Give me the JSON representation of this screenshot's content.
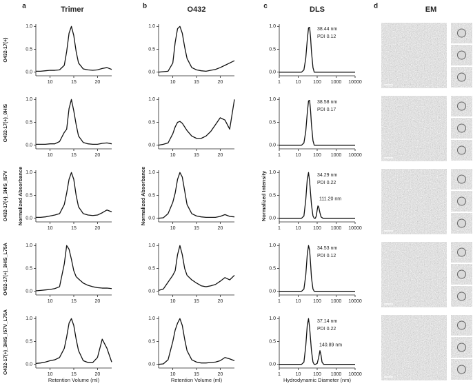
{
  "figure": {
    "panels": [
      {
        "letter": "a",
        "title": "Trimer"
      },
      {
        "letter": "b",
        "title": "O432"
      },
      {
        "letter": "c",
        "title": "DLS"
      },
      {
        "letter": "d",
        "title": "EM"
      }
    ],
    "row_labels": [
      "O432-17(+)",
      "O432-17(+)_0HIS",
      "O432-17(+)_3HIS_I57V",
      "O432-17(+)_3HIS_L75A",
      "O432-17(+)_3HIS_I57V_L75A"
    ],
    "y_labels": [
      "Normalized Absorbance",
      "Normalized Absorbance",
      "Normalized Intensity"
    ],
    "x_labels": [
      "Retention Volume (ml)",
      "Retention Volume (ml)",
      "Hydrodynamic Diameter (nm)"
    ]
  },
  "chart_data": [
    {
      "type": "line",
      "x": [
        7,
        8,
        9,
        10,
        11,
        12,
        13,
        13.5,
        14,
        14.5,
        15,
        15.5,
        16,
        17,
        18,
        19,
        20,
        21,
        22,
        23
      ],
      "values": [
        0.02,
        0.02,
        0.03,
        0.04,
        0.04,
        0.05,
        0.15,
        0.45,
        0.85,
        1.0,
        0.8,
        0.45,
        0.2,
        0.07,
        0.05,
        0.04,
        0.05,
        0.08,
        0.1,
        0.06
      ],
      "xlim": [
        7,
        23
      ],
      "xticks": [
        10,
        15,
        20
      ],
      "ylim": [
        -0.08,
        1.05
      ],
      "yticks": [
        {
          "value": 0,
          "label": "0.0"
        },
        {
          "value": 0.5,
          "label": "0.5"
        },
        {
          "value": 1,
          "label": "1.0"
        }
      ],
      "color": "#111111"
    },
    {
      "type": "line",
      "x": [
        7,
        8,
        9,
        10,
        11,
        12,
        13,
        13.5,
        14,
        14.5,
        15,
        15.5,
        16,
        17,
        18,
        19,
        20,
        21,
        22,
        23
      ],
      "values": [
        0.02,
        0.02,
        0.02,
        0.03,
        0.03,
        0.08,
        0.28,
        0.35,
        0.8,
        1.0,
        0.75,
        0.45,
        0.2,
        0.06,
        0.03,
        0.02,
        0.02,
        0.04,
        0.05,
        0.03
      ],
      "xlim": [
        7,
        23
      ],
      "xticks": [
        10,
        15,
        20
      ],
      "ylim": [
        -0.08,
        1.05
      ],
      "yticks": [
        {
          "value": 0,
          "label": "0.0"
        },
        {
          "value": 0.5,
          "label": "0.5"
        },
        {
          "value": 1,
          "label": "1.0"
        }
      ],
      "color": "#111111"
    },
    {
      "type": "line",
      "x": [
        7,
        8,
        9,
        10,
        11,
        12,
        13,
        13.5,
        14,
        14.5,
        15,
        15.5,
        16,
        17,
        18,
        19,
        20,
        21,
        22,
        23
      ],
      "values": [
        0.02,
        0.02,
        0.03,
        0.05,
        0.07,
        0.1,
        0.3,
        0.55,
        0.85,
        1.0,
        0.85,
        0.5,
        0.25,
        0.1,
        0.07,
        0.06,
        0.07,
        0.12,
        0.18,
        0.14
      ],
      "xlim": [
        7,
        23
      ],
      "xticks": [
        10,
        15,
        20
      ],
      "ylim": [
        -0.08,
        1.05
      ],
      "yticks": [
        {
          "value": 0,
          "label": "0.0"
        },
        {
          "value": 0.5,
          "label": "0.5"
        },
        {
          "value": 1,
          "label": "1.0"
        }
      ],
      "color": "#111111"
    },
    {
      "type": "line",
      "x": [
        7,
        8,
        9,
        10,
        11,
        12,
        13,
        13.5,
        14,
        14.5,
        15,
        15.5,
        16,
        17,
        18,
        19,
        20,
        21,
        22,
        23
      ],
      "values": [
        0.01,
        0.02,
        0.03,
        0.04,
        0.06,
        0.1,
        0.6,
        1.0,
        0.92,
        0.7,
        0.45,
        0.32,
        0.27,
        0.18,
        0.13,
        0.1,
        0.08,
        0.07,
        0.07,
        0.06
      ],
      "xlim": [
        7,
        23
      ],
      "xticks": [
        10,
        15,
        20
      ],
      "ylim": [
        -0.08,
        1.05
      ],
      "yticks": [
        {
          "value": 0,
          "label": "0.0"
        },
        {
          "value": 0.5,
          "label": "0.5"
        },
        {
          "value": 1,
          "label": "1.0"
        }
      ],
      "color": "#111111"
    },
    {
      "type": "line",
      "x": [
        7,
        8,
        9,
        10,
        11,
        12,
        13,
        13.5,
        14,
        14.5,
        15,
        15.5,
        16,
        17,
        18,
        19,
        20,
        21,
        22,
        23
      ],
      "values": [
        0.02,
        0.03,
        0.05,
        0.08,
        0.1,
        0.15,
        0.35,
        0.6,
        0.9,
        1.0,
        0.85,
        0.55,
        0.3,
        0.08,
        0.04,
        0.04,
        0.15,
        0.55,
        0.35,
        0.05
      ],
      "xlim": [
        7,
        23
      ],
      "xticks": [
        10,
        15,
        20
      ],
      "ylim": [
        -0.08,
        1.05
      ],
      "yticks": [
        {
          "value": 0,
          "label": "0.0"
        },
        {
          "value": 0.5,
          "label": "0.5"
        },
        {
          "value": 1,
          "label": "1.0"
        }
      ],
      "color": "#111111"
    },
    {
      "type": "line",
      "x": [
        7,
        8,
        9,
        10,
        10.5,
        11,
        11.5,
        12,
        12.5,
        13,
        14,
        15,
        16,
        17,
        18,
        19,
        20,
        21,
        22,
        23
      ],
      "values": [
        0.0,
        0.01,
        0.02,
        0.2,
        0.65,
        0.95,
        1.0,
        0.85,
        0.55,
        0.3,
        0.1,
        0.05,
        0.03,
        0.02,
        0.04,
        0.06,
        0.1,
        0.15,
        0.2,
        0.25
      ],
      "xlim": [
        7,
        23
      ],
      "xticks": [
        10,
        15,
        20
      ],
      "ylim": [
        -0.08,
        1.05
      ],
      "yticks": [
        {
          "value": 0,
          "label": "0.0"
        },
        {
          "value": 0.5,
          "label": "0.5"
        },
        {
          "value": 1,
          "label": "1.0"
        }
      ],
      "color": "#111111"
    },
    {
      "type": "line",
      "x": [
        7,
        8,
        9,
        10,
        10.5,
        11,
        11.5,
        12,
        12.5,
        13,
        14,
        15,
        16,
        17,
        18,
        19,
        20,
        21,
        22,
        23
      ],
      "values": [
        0.0,
        0.02,
        0.05,
        0.25,
        0.4,
        0.5,
        0.52,
        0.48,
        0.4,
        0.32,
        0.2,
        0.15,
        0.15,
        0.2,
        0.3,
        0.45,
        0.6,
        0.55,
        0.35,
        1.0
      ],
      "xlim": [
        7,
        23
      ],
      "xticks": [
        10,
        15,
        20
      ],
      "ylim": [
        -0.08,
        1.05
      ],
      "yticks": [
        {
          "value": 0,
          "label": "0.0"
        },
        {
          "value": 0.5,
          "label": "0.5"
        },
        {
          "value": 1,
          "label": "1.0"
        }
      ],
      "color": "#111111"
    },
    {
      "type": "line",
      "x": [
        7,
        8,
        9,
        10,
        10.5,
        11,
        11.5,
        12,
        12.5,
        13,
        14,
        15,
        16,
        17,
        18,
        19,
        20,
        21,
        22,
        23
      ],
      "values": [
        0.0,
        0.01,
        0.1,
        0.35,
        0.55,
        0.85,
        1.0,
        0.9,
        0.6,
        0.3,
        0.1,
        0.05,
        0.03,
        0.02,
        0.02,
        0.02,
        0.04,
        0.08,
        0.04,
        0.03
      ],
      "xlim": [
        7,
        23
      ],
      "xticks": [
        10,
        15,
        20
      ],
      "ylim": [
        -0.08,
        1.05
      ],
      "yticks": [
        {
          "value": 0,
          "label": "0.0"
        },
        {
          "value": 0.5,
          "label": "0.5"
        },
        {
          "value": 1,
          "label": "1.0"
        }
      ],
      "color": "#111111"
    },
    {
      "type": "line",
      "x": [
        7,
        8,
        9,
        10,
        10.5,
        11,
        11.5,
        12,
        12.5,
        13,
        14,
        15,
        16,
        17,
        18,
        19,
        20,
        21,
        22,
        23
      ],
      "values": [
        0.02,
        0.05,
        0.2,
        0.35,
        0.45,
        0.8,
        1.0,
        0.8,
        0.5,
        0.35,
        0.25,
        0.18,
        0.12,
        0.1,
        0.12,
        0.15,
        0.22,
        0.3,
        0.25,
        0.35
      ],
      "xlim": [
        7,
        23
      ],
      "xticks": [
        10,
        15,
        20
      ],
      "ylim": [
        -0.08,
        1.05
      ],
      "yticks": [
        {
          "value": 0,
          "label": "0.0"
        },
        {
          "value": 0.5,
          "label": "0.5"
        },
        {
          "value": 1,
          "label": "1.0"
        }
      ],
      "color": "#111111"
    },
    {
      "type": "line",
      "x": [
        7,
        8,
        9,
        10,
        10.5,
        11,
        11.5,
        12,
        12.5,
        13,
        14,
        15,
        16,
        17,
        18,
        19,
        20,
        21,
        22,
        23
      ],
      "values": [
        0.0,
        0.01,
        0.1,
        0.5,
        0.75,
        0.9,
        1.0,
        0.85,
        0.55,
        0.3,
        0.1,
        0.05,
        0.03,
        0.03,
        0.04,
        0.05,
        0.08,
        0.15,
        0.12,
        0.08
      ],
      "xlim": [
        7,
        23
      ],
      "xticks": [
        10,
        15,
        20
      ],
      "ylim": [
        -0.08,
        1.05
      ],
      "yticks": [
        {
          "value": 0,
          "label": "0.0"
        },
        {
          "value": 0.5,
          "label": "0.5"
        },
        {
          "value": 1,
          "label": "1.0"
        }
      ],
      "color": "#111111"
    },
    {
      "type": "line",
      "x": [
        1,
        15,
        20,
        25,
        30,
        35,
        40,
        45,
        50,
        60,
        70,
        10000
      ],
      "values": [
        0,
        0,
        0.05,
        0.3,
        0.7,
        0.97,
        0.98,
        0.75,
        0.45,
        0.1,
        0,
        0
      ],
      "xscale": "log",
      "xlim": [
        1,
        10000
      ],
      "xticks": [
        1,
        10,
        100,
        1000,
        10000
      ],
      "ylim": [
        -0.08,
        1.05
      ],
      "yticks": [
        {
          "value": 0,
          "label": "0.0"
        },
        {
          "value": 0.5,
          "label": "0.5"
        },
        {
          "value": 1,
          "label": "1.0"
        }
      ],
      "color": "#111111",
      "annotations": [
        "38.44 nm",
        "PDI 0.12"
      ]
    },
    {
      "type": "line",
      "x": [
        1,
        15,
        20,
        25,
        30,
        35,
        40,
        45,
        50,
        60,
        70,
        10000
      ],
      "values": [
        0,
        0,
        0.05,
        0.3,
        0.7,
        0.97,
        0.98,
        0.75,
        0.45,
        0.1,
        0,
        0
      ],
      "xscale": "log",
      "xlim": [
        1,
        10000
      ],
      "xticks": [
        1,
        10,
        100,
        1000,
        10000
      ],
      "ylim": [
        -0.08,
        1.05
      ],
      "yticks": [
        {
          "value": 0,
          "label": "0.0"
        },
        {
          "value": 0.5,
          "label": "0.5"
        },
        {
          "value": 1,
          "label": "1.0"
        }
      ],
      "color": "#111111",
      "annotations": [
        "38.58 nm",
        "PDI 0.17"
      ]
    },
    {
      "type": "line",
      "x": [
        1,
        15,
        20,
        25,
        30,
        35,
        40,
        50,
        60,
        70,
        80,
        90,
        100,
        110,
        120,
        140,
        160,
        200,
        10000
      ],
      "values": [
        0,
        0,
        0.05,
        0.4,
        0.85,
        1.0,
        0.8,
        0.3,
        0.05,
        0,
        0,
        0.05,
        0.18,
        0.27,
        0.25,
        0.12,
        0.03,
        0,
        0
      ],
      "xscale": "log",
      "xlim": [
        1,
        10000
      ],
      "xticks": [
        1,
        10,
        100,
        1000,
        10000
      ],
      "ylim": [
        -0.08,
        1.05
      ],
      "yticks": [
        {
          "value": 0,
          "label": "0.0"
        },
        {
          "value": 0.5,
          "label": "0.5"
        },
        {
          "value": 1,
          "label": "1.0"
        }
      ],
      "color": "#111111",
      "annotations": [
        "34.29 nm",
        "PDI 0.22",
        "111.20 nm"
      ]
    },
    {
      "type": "line",
      "x": [
        1,
        15,
        20,
        25,
        30,
        35,
        40,
        45,
        50,
        60,
        70,
        10000
      ],
      "values": [
        0,
        0,
        0.05,
        0.35,
        0.8,
        1.0,
        0.9,
        0.6,
        0.3,
        0.05,
        0,
        0
      ],
      "xscale": "log",
      "xlim": [
        1,
        10000
      ],
      "xticks": [
        1,
        10,
        100,
        1000,
        10000
      ],
      "ylim": [
        -0.08,
        1.05
      ],
      "yticks": [
        {
          "value": 0,
          "label": "0.0"
        },
        {
          "value": 0.5,
          "label": "0.5"
        },
        {
          "value": 1,
          "label": "1.0"
        }
      ],
      "color": "#111111",
      "annotations": [
        "34.53 nm",
        "PDI 0.12"
      ]
    },
    {
      "type": "line",
      "x": [
        1,
        15,
        20,
        25,
        30,
        35,
        40,
        50,
        60,
        70,
        80,
        100,
        120,
        140,
        160,
        180,
        220,
        10000
      ],
      "values": [
        0,
        0,
        0.05,
        0.4,
        0.85,
        1.0,
        0.8,
        0.3,
        0.05,
        0,
        0,
        0.02,
        0.15,
        0.3,
        0.2,
        0.05,
        0,
        0
      ],
      "xscale": "log",
      "xlim": [
        1,
        10000
      ],
      "xticks": [
        1,
        10,
        100,
        1000,
        10000
      ],
      "ylim": [
        -0.08,
        1.05
      ],
      "yticks": [
        {
          "value": 0,
          "label": "0.0"
        },
        {
          "value": 0.5,
          "label": "0.5"
        },
        {
          "value": 1,
          "label": "1.0"
        }
      ],
      "color": "#111111",
      "annotations": [
        "37.14 nm",
        "PDI 0.22",
        "140.89 nm"
      ]
    }
  ]
}
